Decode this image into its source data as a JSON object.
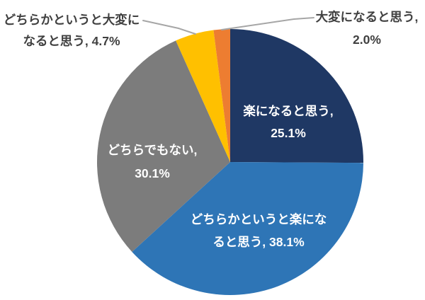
{
  "chart_data": {
    "type": "pie",
    "title": "",
    "categories": [
      "楽になると思う",
      "どちらかというと楽になると思う",
      "どちらでもない",
      "どちらかというと大変になると思う",
      "大変になると思う"
    ],
    "values": [
      25.1,
      38.1,
      30.1,
      4.7,
      2.0
    ],
    "unit": "%",
    "colors": [
      "#1F3864",
      "#2E75B6",
      "#7C7C7C",
      "#FFC000",
      "#ED7D31"
    ],
    "start_angle": "12-oclock",
    "direction": "clockwise",
    "legend_position": "none",
    "background": "#FFFFFF",
    "leader_line_color": "#A6A6A6",
    "data_labels": [
      {
        "line1": "楽になると思う,",
        "line2": "25.1%",
        "placement": "inside",
        "color": "#FFFFFF"
      },
      {
        "line1": "どちらかというと楽にな",
        "line2": "ると思う, 38.1%",
        "placement": "inside",
        "color": "#FFFFFF"
      },
      {
        "line1": "どちらでもない,",
        "line2": "30.1%",
        "placement": "inside",
        "color": "#FFFFFF"
      },
      {
        "line1": "どちらかというと大変に",
        "line2": "なると思う, 4.7%",
        "placement": "outside",
        "color": "#404040"
      },
      {
        "line1": "大変になると思う,",
        "line2": "2.0%",
        "placement": "outside",
        "color": "#404040"
      }
    ]
  }
}
